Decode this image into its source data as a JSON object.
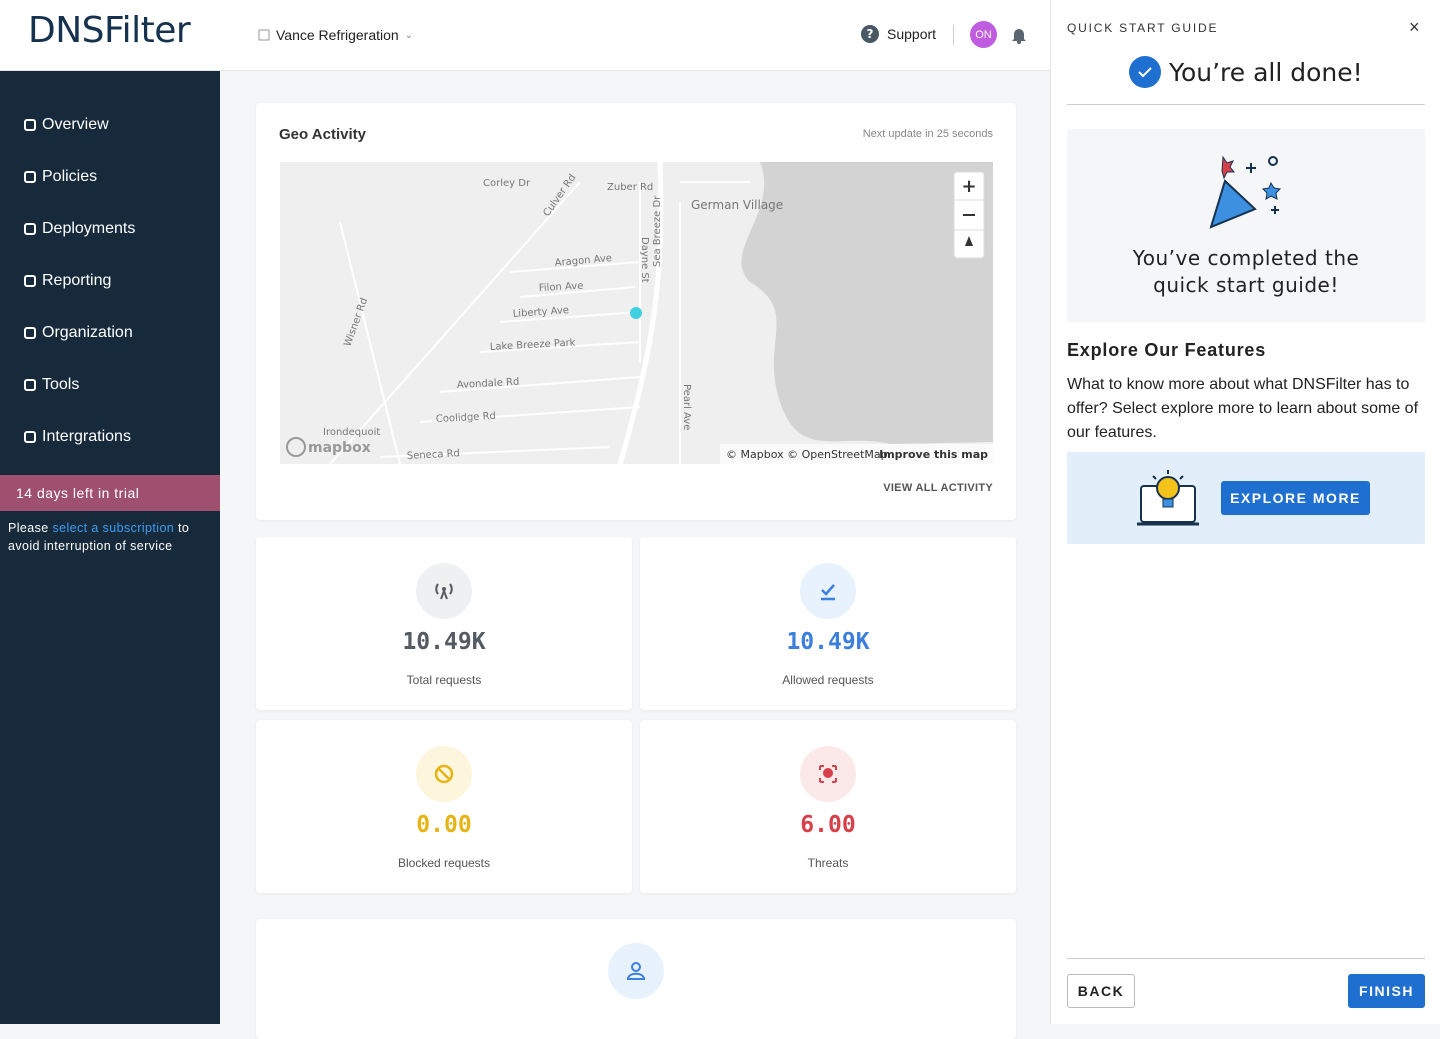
{
  "header": {
    "brand": "DNSFilter",
    "organization": "Vance Refrigeration",
    "support": "Support",
    "avatar": "ON"
  },
  "sidebar": {
    "nav": [
      "Overview",
      "Policies",
      "Deployments",
      "Reporting",
      "Organization",
      "Tools",
      "Intergrations"
    ],
    "trial": "14 days left in trial",
    "notice": {
      "before": "Please",
      "link": "select a subscription",
      "after": "to avoid interruption of service"
    }
  },
  "geo": {
    "title": "Geo Activity",
    "update": "Next update in 25 seconds",
    "map_labels": [
      "Corley Dr",
      "Zuber Rd",
      "Culver Rd",
      "German Village",
      "Aragon Ave",
      "Dayne St",
      "Sea Breeze Dr",
      "Filon Ave",
      "Liberty Ave",
      "Wisner Rd",
      "Lake Breeze Park",
      "Avondale Rd",
      "Pearl Ave",
      "Coolidge Rd",
      "Irondequoit",
      "Seneca Rd"
    ],
    "mapbox": "mapbox",
    "attribution": "© Mapbox © OpenStreetMap",
    "improve": "Improve this map",
    "view_all": "VIEW ALL ACTIVITY"
  },
  "stats": [
    {
      "value": "10.49K",
      "label": "Total requests",
      "color": "#555b63",
      "bg": "#eef0f2"
    },
    {
      "value": "10.49K",
      "label": "Allowed requests",
      "color": "#3d7fdc",
      "bg": "#e8f2fc"
    },
    {
      "value": "0.00",
      "label": "Blocked requests",
      "color": "#e7b416",
      "bg": "#fdf6dc"
    },
    {
      "value": "6.00",
      "label": "Threats",
      "color": "#d8414a",
      "bg": "#fbe9ea"
    }
  ],
  "guide": {
    "heading": "QUICK START GUIDE",
    "done": "You’re all done!",
    "completed": [
      "You’ve completed the",
      "quick start guide!"
    ],
    "explore_title": "Explore Our Features",
    "explore_text": "What to know more about what DNSFilter has to offer? Select explore more to learn about some of our features.",
    "explore_button": "EXPLORE MORE",
    "back": "BACK",
    "finish": "FINISH"
  }
}
